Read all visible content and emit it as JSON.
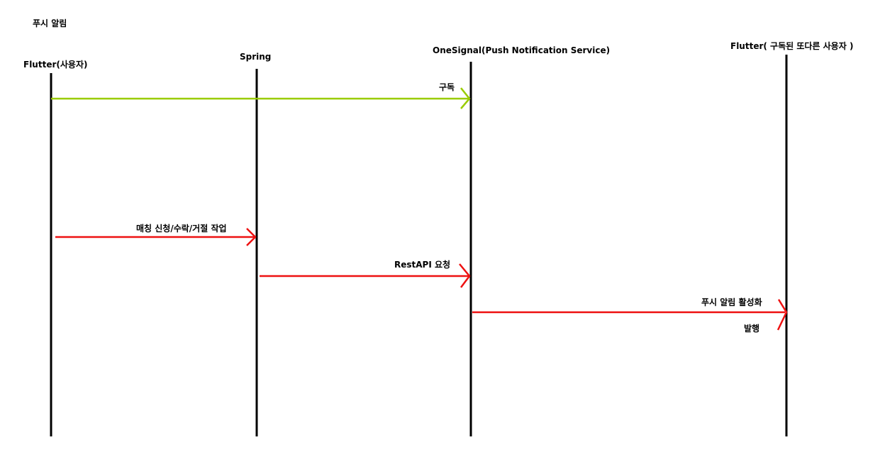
{
  "title": "푸시 알림",
  "participants": [
    {
      "id": "flutter_user",
      "label": "Flutter(사용자)"
    },
    {
      "id": "spring",
      "label": "Spring"
    },
    {
      "id": "onesignal",
      "label": "OneSignal(Push Notification Service)"
    },
    {
      "id": "flutter_other",
      "label": "Flutter( 구독된 또다른 사용자 )"
    }
  ],
  "messages": [
    {
      "from": "flutter_user",
      "to": "onesignal",
      "label": "구독",
      "color": "#99cc00"
    },
    {
      "from": "flutter_user",
      "to": "spring",
      "label": "매칭 신청/수락/거절 작업",
      "color": "#ee1111"
    },
    {
      "from": "spring",
      "to": "onesignal",
      "label": "RestAPI 요청",
      "color": "#ee1111"
    },
    {
      "from": "onesignal",
      "to": "flutter_other",
      "label": "푸시 알림 활성화",
      "label2": "발행",
      "color": "#ee1111"
    }
  ],
  "colors": {
    "lifeline": "#000000",
    "subscribe_arrow": "#99cc00",
    "request_arrow": "#ee1111"
  }
}
